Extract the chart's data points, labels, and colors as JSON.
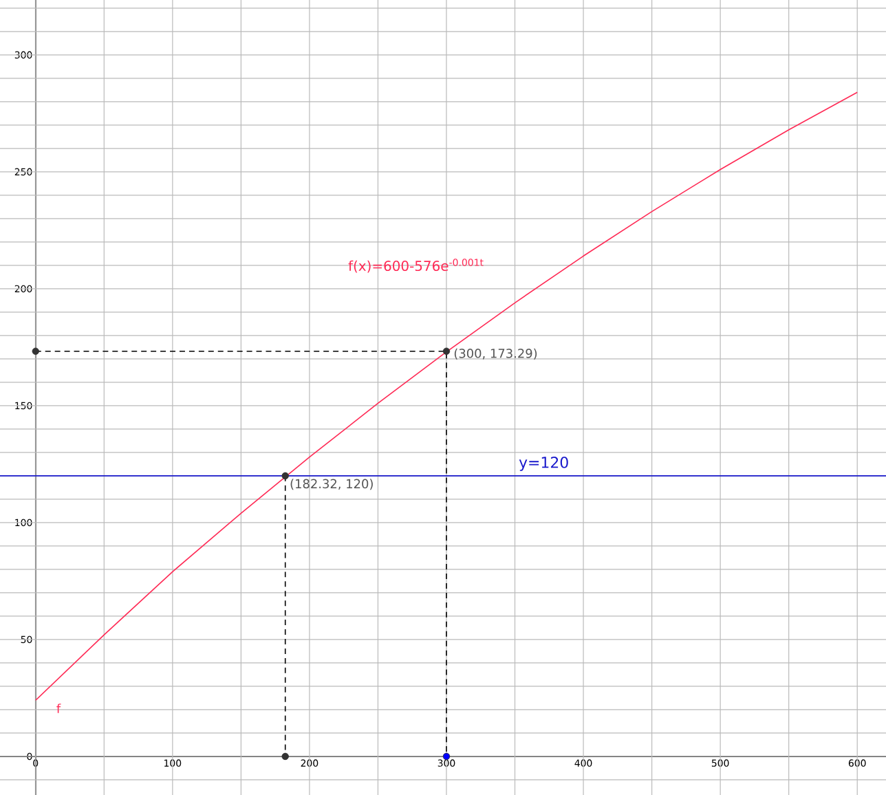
{
  "chart_data": {
    "type": "line",
    "x": [
      0,
      50,
      100,
      150,
      200,
      250,
      300,
      350,
      400,
      450,
      500,
      550,
      600
    ],
    "series": [
      {
        "type": "line",
        "color": "#ff2a55",
        "values": [
          24,
          52,
          79,
          104,
          128,
          151,
          173,
          194,
          214,
          233,
          251,
          268,
          284
        ]
      },
      {
        "type": "line",
        "color": "#000000",
        "line_style": "dashed",
        "x": [
          0,
          300,
          300
        ],
        "values": [
          173.29,
          173.29,
          0
        ]
      },
      {
        "type": "line",
        "color": "#000000",
        "line_style": "dashed",
        "x": [
          182.32,
          182.32
        ],
        "values": [
          120,
          0
        ]
      },
      {
        "type": "scatter",
        "marker": "circle",
        "x": [
          182.32,
          300,
          0,
          182.32,
          300
        ],
        "values": [
          120,
          173.29,
          173.29,
          0,
          0
        ],
        "colors": [
          "#333333",
          "#333333",
          "#333333",
          "#333333",
          "#0000ff"
        ]
      }
    ],
    "xlim": [
      -26,
      621
    ],
    "ylim": [
      -16.5,
      323.5
    ],
    "xticks": [
      0,
      100,
      200,
      300,
      400,
      500,
      600
    ],
    "yticks": [
      0,
      50,
      100,
      150,
      200,
      250,
      300
    ],
    "grid": true,
    "marker": "none",
    "line_style": "solid",
    "ref_lines": [
      {
        "axis": "y",
        "value": 120,
        "label": "y=120",
        "color": "#1a1acc"
      }
    ],
    "annotations": [
      "f(x)=600-576e$^{-0.001t}$",
      "f",
      {
        "text": "(182.32, 120)",
        "x": 182.32,
        "y": 120
      },
      {
        "text": "(300, 173.29)",
        "x": 300,
        "y": 173.29
      }
    ]
  }
}
